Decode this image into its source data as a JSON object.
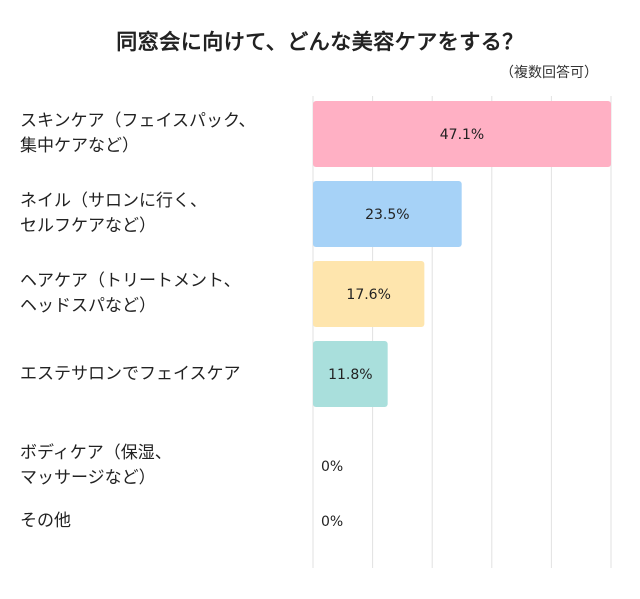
{
  "chart_data": {
    "type": "bar",
    "orientation": "horizontal",
    "title": "同窓会に向けて、どんな美容ケアをする？",
    "subtitle": "（複数回答可）",
    "categories": [
      [
        "スキンケア（フェイスパック、",
        "集中ケアなど）"
      ],
      [
        "ネイル（サロンに行く、",
        "セルフケアなど）"
      ],
      [
        "ヘアケア（トリートメント、",
        "ヘッドスパなど）"
      ],
      [
        "エステサロンでフェイスケア"
      ],
      [
        "ボディケア（保湿、",
        "マッサージなど）"
      ],
      [
        "その他"
      ]
    ],
    "values": [
      47.1,
      23.5,
      17.6,
      11.8,
      0,
      0
    ],
    "value_labels": [
      "47.1%",
      "23.5%",
      "17.6%",
      "11.8%",
      "0%",
      "0%"
    ],
    "bar_colors": [
      "#ffb0c4",
      "#a6d2f7",
      "#fee5ad",
      "#a9dfdc",
      "#cccccc",
      "#cccccc"
    ],
    "gridline_color": "#e2e2e2",
    "xlim": [
      0,
      47.1
    ],
    "grid": true,
    "legend": "none"
  }
}
